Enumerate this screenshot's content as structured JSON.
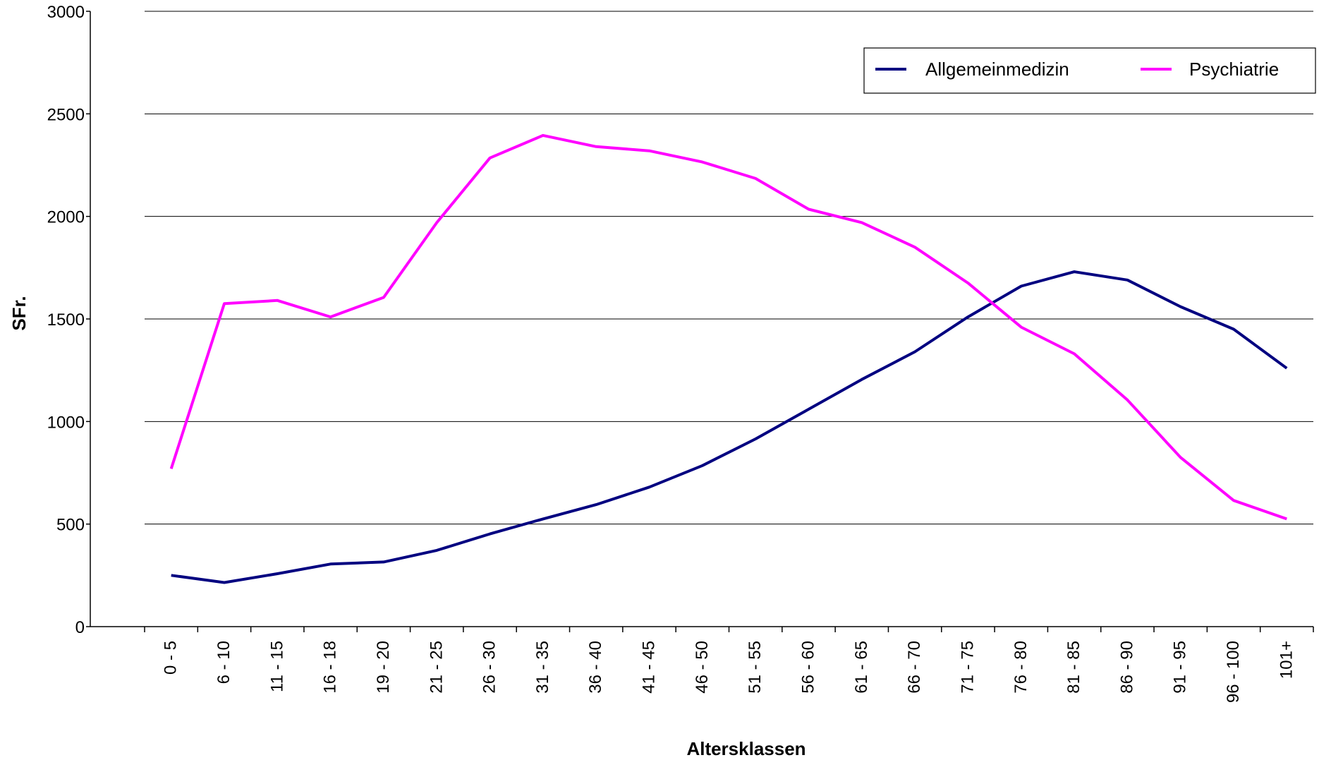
{
  "chart_data": {
    "type": "line",
    "xlabel": "Altersklassen",
    "ylabel": "SFr.",
    "ylim": [
      0,
      3000
    ],
    "yticks": [
      0,
      500,
      1000,
      1500,
      2000,
      2500,
      3000
    ],
    "grid": true,
    "legend_position": "top-right",
    "categories": [
      "0 - 5",
      "6 - 10",
      "11 - 15",
      "16 - 18",
      "19 - 20",
      "21 - 25",
      "26 - 30",
      "31 - 35",
      "36 - 40",
      "41 - 45",
      "46 - 50",
      "51 - 55",
      "56 - 60",
      "61 - 65",
      "66 - 70",
      "71 - 75",
      "76 - 80",
      "81 - 85",
      "86 - 90",
      "91 - 95",
      "96 - 100",
      "101+"
    ],
    "series": [
      {
        "name": "Allgemeinmedizin",
        "color": "#000080",
        "values": [
          250,
          215,
          258,
          305,
          315,
          372,
          452,
          525,
          595,
          680,
          785,
          915,
          1060,
          1205,
          1340,
          1510,
          1660,
          1730,
          1690,
          1560,
          1450,
          1260
        ]
      },
      {
        "name": "Psychiatrie",
        "color": "#ff00ff",
        "values": [
          770,
          1575,
          1590,
          1510,
          1605,
          1970,
          2285,
          2395,
          2340,
          2320,
          2265,
          2185,
          2035,
          1970,
          1850,
          1675,
          1460,
          1330,
          1105,
          825,
          615,
          525
        ]
      }
    ]
  }
}
